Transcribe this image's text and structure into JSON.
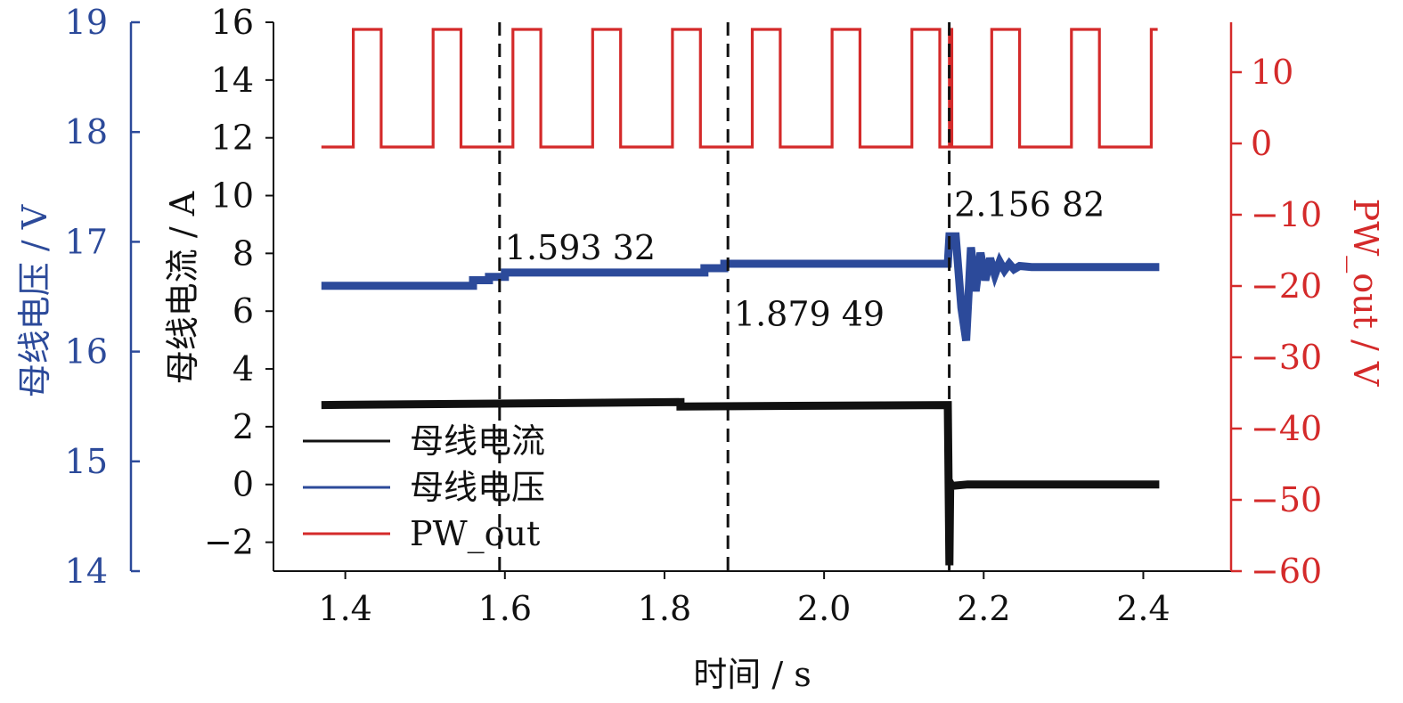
{
  "chart_data": {
    "type": "line",
    "xlabel": "时间 / s",
    "x_ticks": [
      1.4,
      1.6,
      1.8,
      2.0,
      2.2,
      2.4
    ],
    "x_tick_labels": [
      "1.4",
      "1.6",
      "1.8",
      "2.0",
      "2.2",
      "2.4"
    ],
    "xlim": [
      1.31,
      2.51
    ],
    "axes": {
      "left_outer": {
        "label": "母线电压 / V",
        "color": "#2c4a9a",
        "ylim": [
          14,
          19
        ],
        "ticks": [
          14,
          15,
          16,
          17,
          18,
          19
        ],
        "tick_labels": [
          "14",
          "15",
          "16",
          "17",
          "18",
          "19"
        ]
      },
      "left_inner": {
        "label": "母线电流 / A",
        "color": "#111111",
        "ylim": [
          -3,
          16
        ],
        "ticks": [
          -2,
          0,
          2,
          4,
          6,
          8,
          10,
          12,
          14,
          16
        ],
        "tick_labels": [
          "−2",
          "0",
          "2",
          "4",
          "6",
          "8",
          "10",
          "12",
          "14",
          "16"
        ]
      },
      "right": {
        "label": "PW_out / V",
        "color": "#d42a2a",
        "ylim": [
          -60,
          17
        ],
        "ticks": [
          -60,
          -50,
          -40,
          -30,
          -20,
          -10,
          0,
          10
        ],
        "tick_labels": [
          "−60",
          "−50",
          "−40",
          "−30",
          "−20",
          "−10",
          "0",
          "10"
        ]
      }
    },
    "vlines": [
      1.59332,
      1.87949,
      2.15682
    ],
    "annotations": [
      {
        "text": "1.593 32",
        "x": 1.6,
        "y_current": 8.2
      },
      {
        "text": "1.879 49",
        "x": 1.887,
        "y_current": 5.9
      },
      {
        "text": "2.156 82",
        "x": 2.163,
        "y_current": 9.7
      }
    ],
    "legend": {
      "placement": "bottom-left",
      "entries": [
        {
          "label": "母线电流",
          "color": "#111111"
        },
        {
          "label": "母线电压",
          "color": "#2c4a9a"
        },
        {
          "label": "PW_out",
          "color": "#d42a2a"
        }
      ]
    },
    "series": [
      {
        "name": "母线电流",
        "axis": "left_inner",
        "color": "#111111",
        "x": [
          1.37,
          1.82,
          1.82,
          2.155,
          2.157,
          2.158,
          2.16,
          2.18,
          2.42
        ],
        "y": [
          2.75,
          2.85,
          2.7,
          2.75,
          -2.8,
          0.05,
          -0.05,
          0.0,
          0.0
        ]
      },
      {
        "name": "母线电压",
        "axis": "left_outer",
        "color": "#2c4a9a",
        "x": [
          1.37,
          1.56,
          1.56,
          1.58,
          1.58,
          1.6,
          1.6,
          1.85,
          1.85,
          1.875,
          1.875,
          2.155,
          2.157,
          2.165,
          2.172,
          2.178,
          2.184,
          2.19,
          2.196,
          2.202,
          2.208,
          2.214,
          2.22,
          2.226,
          2.232,
          2.238,
          2.245,
          2.26,
          2.42
        ],
        "y": [
          16.6,
          16.6,
          16.65,
          16.65,
          16.68,
          16.68,
          16.72,
          16.72,
          16.76,
          16.76,
          16.8,
          16.8,
          17.05,
          17.05,
          16.4,
          16.1,
          16.95,
          16.55,
          16.9,
          16.65,
          16.85,
          16.7,
          16.82,
          16.74,
          16.8,
          16.75,
          16.78,
          16.77,
          16.77
        ]
      },
      {
        "name": "PW_out",
        "axis": "right",
        "color": "#d42a2a",
        "x": [
          1.37,
          1.41,
          1.41,
          1.445,
          1.445,
          1.51,
          1.51,
          1.545,
          1.545,
          1.61,
          1.61,
          1.645,
          1.645,
          1.71,
          1.71,
          1.745,
          1.745,
          1.81,
          1.81,
          1.845,
          1.845,
          1.91,
          1.91,
          1.945,
          1.945,
          2.01,
          2.01,
          2.045,
          2.045,
          2.11,
          2.11,
          2.145,
          2.145,
          2.157,
          2.157,
          2.16,
          2.16,
          2.21,
          2.21,
          2.245,
          2.245,
          2.31,
          2.31,
          2.345,
          2.345,
          2.41,
          2.41,
          2.418
        ],
        "y": [
          -0.5,
          -0.5,
          16,
          16,
          -0.5,
          -0.5,
          16,
          16,
          -0.5,
          -0.5,
          16,
          16,
          -0.5,
          -0.5,
          16,
          16,
          -0.5,
          -0.5,
          16,
          16,
          -0.5,
          -0.5,
          16,
          16,
          -0.5,
          -0.5,
          16,
          16,
          -0.5,
          -0.5,
          16,
          16,
          -0.5,
          -0.5,
          16,
          16,
          -0.5,
          -0.5,
          16,
          16,
          -0.5,
          -0.5,
          16,
          16,
          -0.5,
          -0.5,
          16,
          16
        ]
      }
    ]
  }
}
